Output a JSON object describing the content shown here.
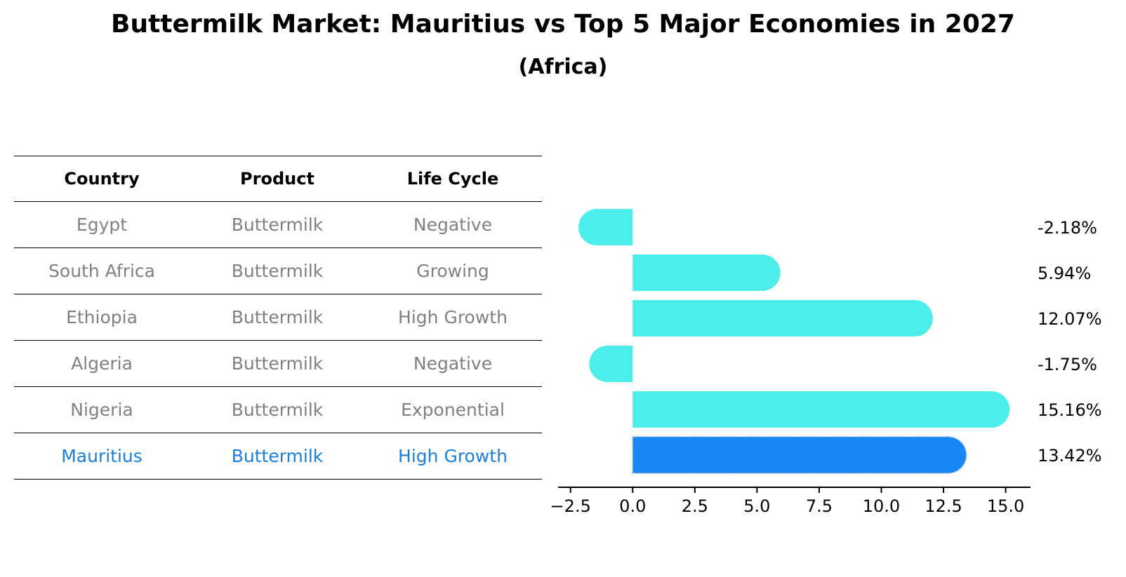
{
  "title": "Buttermilk Market: Mauritius vs Top 5 Major Economies in 2027",
  "subtitle": "(Africa)",
  "table": {
    "headers": [
      "Country",
      "Product",
      "Life Cycle"
    ],
    "rows": [
      {
        "country": "Egypt",
        "product": "Buttermilk",
        "life_cycle": "Negative"
      },
      {
        "country": "South Africa",
        "product": "Buttermilk",
        "life_cycle": "Growing"
      },
      {
        "country": "Ethiopia",
        "product": "Buttermilk",
        "life_cycle": "High Growth"
      },
      {
        "country": "Algeria",
        "product": "Buttermilk",
        "life_cycle": "Negative"
      },
      {
        "country": "Nigeria",
        "product": "Buttermilk",
        "life_cycle": "Exponential"
      },
      {
        "country": "Mauritius",
        "product": "Buttermilk",
        "life_cycle": "High Growth"
      }
    ]
  },
  "chart_data": {
    "type": "bar",
    "orientation": "horizontal",
    "categories": [
      "Egypt",
      "South Africa",
      "Ethiopia",
      "Algeria",
      "Nigeria",
      "Mauritius"
    ],
    "values": [
      -2.18,
      5.94,
      12.07,
      -1.75,
      15.16,
      13.42
    ],
    "value_labels": [
      "-2.18%",
      "5.94%",
      "12.07%",
      "-1.75%",
      "15.16%",
      "13.42%"
    ],
    "highlight": "Mauritius",
    "xlim": [
      -3.0,
      16.0
    ],
    "xticks": [
      -2.5,
      0.0,
      2.5,
      5.0,
      7.5,
      10.0,
      12.5,
      15.0
    ],
    "xtick_labels": [
      "−2.5",
      "0.0",
      "2.5",
      "5.0",
      "7.5",
      "10.0",
      "12.5",
      "15.0"
    ],
    "colors": {
      "default": "#4deeea",
      "highlight": "#1a85f5"
    }
  }
}
